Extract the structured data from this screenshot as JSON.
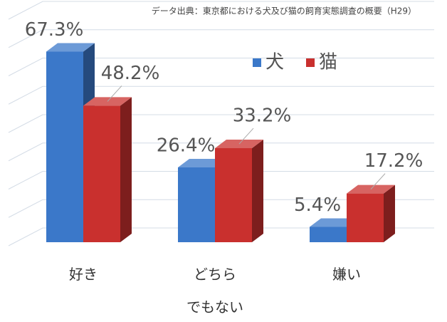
{
  "chart_data": {
    "type": "bar3d",
    "subtitle": "データ出典：東京都における犬及び猫の飼育実態調査の概要（H29）",
    "categories": [
      "好き",
      "どちら\nでもない",
      "嫌い"
    ],
    "series": [
      {
        "name": "犬",
        "color": "#3b78c9",
        "values": [
          67.3,
          26.4,
          5.4
        ],
        "value_labels": [
          "67.3%",
          "26.4%",
          "5.4%"
        ]
      },
      {
        "name": "猫",
        "color": "#c9302e",
        "values": [
          48.2,
          33.2,
          17.2
        ],
        "value_labels": [
          "48.2%",
          "33.2%",
          "17.2%"
        ]
      }
    ],
    "ylim": [
      0,
      80
    ],
    "yticks": [
      0,
      10,
      20,
      30,
      40,
      50,
      60,
      70,
      80
    ],
    "show_ytick_labels": false,
    "grid": true,
    "legend": "top"
  }
}
